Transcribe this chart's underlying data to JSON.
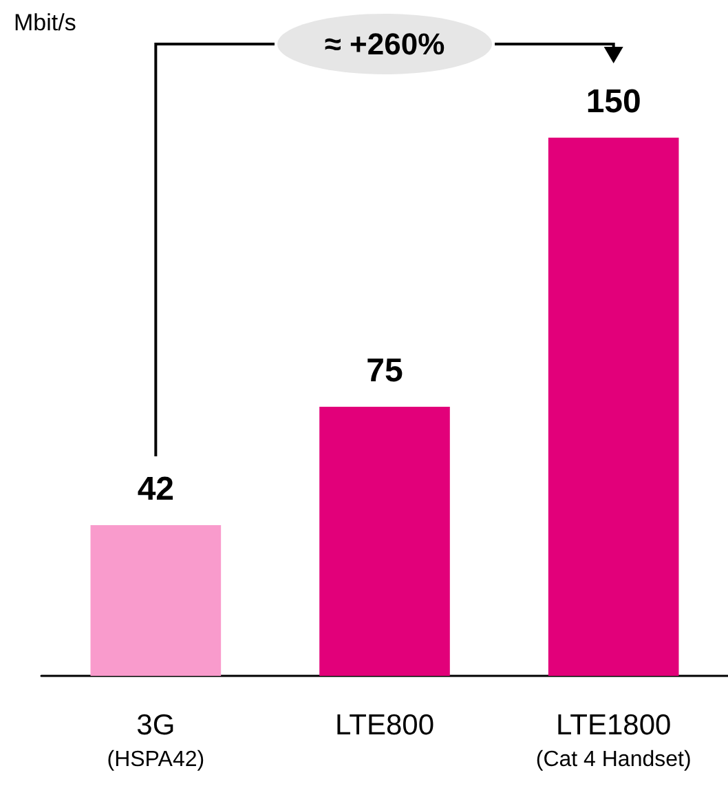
{
  "chart_data": {
    "type": "bar",
    "ylabel": "Mbit/s",
    "categories": [
      "3G\n(HSPA42)",
      "LTE800",
      "LTE1800\n(Cat 4 Handset)"
    ],
    "values": [
      42,
      75,
      150
    ],
    "colors": [
      "#f99bcc",
      "#e2007a",
      "#e2007a"
    ],
    "data_labels": true,
    "annotations": [
      "≈ +260%"
    ]
  }
}
